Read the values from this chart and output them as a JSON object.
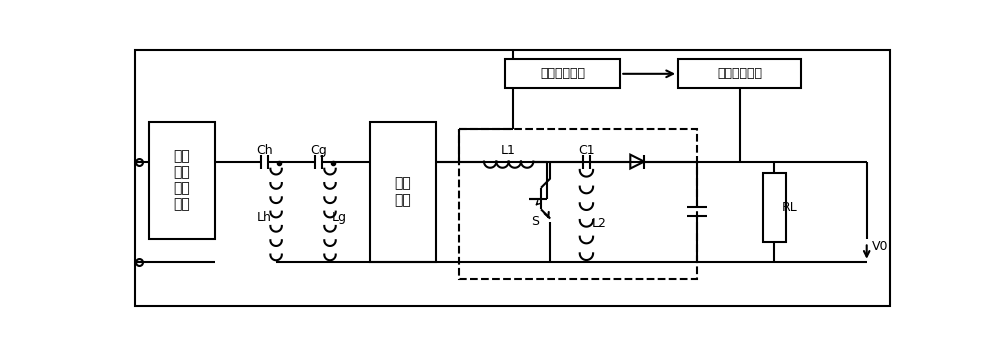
{
  "bg_color": "#ffffff",
  "line_color": "#000000",
  "fig_width": 10.0,
  "fig_height": 3.52,
  "labels": {
    "inverter": "逆变\n功率\n放大\n电路",
    "rectifier": "整流\n电路",
    "converter": "变换调节模块",
    "load_detect": "负载检测模块",
    "Ch": "Ch",
    "Cg": "Cg",
    "Lh": "Lh",
    "Lg": "Lg",
    "L1": "L1",
    "L2": "L2",
    "C1": "C1",
    "S": "S",
    "RL": "RL",
    "V0": "V0"
  }
}
